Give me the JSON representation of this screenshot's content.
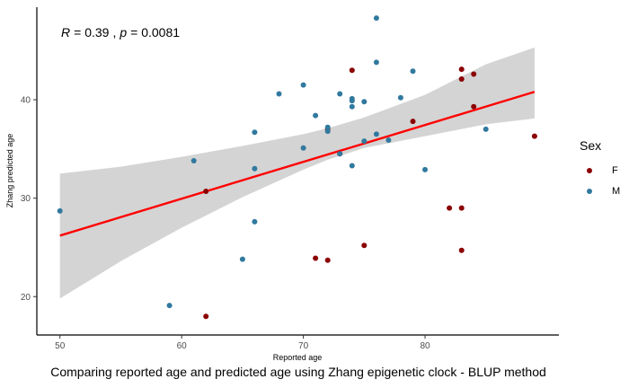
{
  "chart_data": {
    "type": "scatter",
    "title": "",
    "xlabel": "Reported age",
    "ylabel": "Zhang predicted age",
    "caption": "Comparing reported age and predicted age using Zhang epigenetic clock - BLUP method",
    "annotation": {
      "r_label": "R",
      "r_value": "= 0.39",
      "sep": ",",
      "p_label": "p",
      "p_value": "= 0.0081"
    },
    "xlim": [
      48.1,
      91.0
    ],
    "ylim": [
      16.1,
      49.4
    ],
    "x_ticks": [
      50,
      60,
      70,
      80
    ],
    "y_ticks": [
      20,
      30,
      40
    ],
    "legend": {
      "title": "Sex",
      "placement": "right"
    },
    "series": [
      {
        "name": "F",
        "color": "#8b0000",
        "points": [
          [
            62,
            18
          ],
          [
            62,
            30.7
          ],
          [
            71,
            23.9
          ],
          [
            72,
            23.7
          ],
          [
            72,
            37
          ],
          [
            73,
            34.5
          ],
          [
            74,
            43
          ],
          [
            75,
            25.2
          ],
          [
            79,
            37.8
          ],
          [
            82,
            29
          ],
          [
            83,
            29
          ],
          [
            83,
            24.7
          ],
          [
            83,
            43.1
          ],
          [
            83,
            42.1
          ],
          [
            84,
            42.6
          ],
          [
            84,
            39.3
          ],
          [
            89,
            36.3
          ]
        ]
      },
      {
        "name": "M",
        "color": "#31799f",
        "points": [
          [
            50,
            28.7
          ],
          [
            59,
            19.1
          ],
          [
            61,
            33.8
          ],
          [
            65,
            23.8
          ],
          [
            66,
            36.7
          ],
          [
            66,
            33
          ],
          [
            66,
            27.6
          ],
          [
            68,
            40.6
          ],
          [
            70,
            41.5
          ],
          [
            70,
            35.1
          ],
          [
            71,
            38.4
          ],
          [
            72,
            37.2
          ],
          [
            72,
            36.8
          ],
          [
            73,
            40.6
          ],
          [
            73,
            34.5
          ],
          [
            74,
            40.1
          ],
          [
            74,
            39.9
          ],
          [
            74,
            39.3
          ],
          [
            74,
            33.3
          ],
          [
            75,
            39.8
          ],
          [
            75,
            35.8
          ],
          [
            76,
            48.3
          ],
          [
            76,
            43.8
          ],
          [
            76,
            36.5
          ],
          [
            77,
            35.9
          ],
          [
            78,
            40.2
          ],
          [
            79,
            42.9
          ],
          [
            80,
            32.9
          ],
          [
            85,
            37
          ]
        ]
      }
    ],
    "regression": {
      "color": "#ff0000",
      "band_color": "#d4d4d4",
      "x_range": [
        50,
        89
      ],
      "fit": [
        [
          50,
          26.2
        ],
        [
          89,
          40.8
        ]
      ],
      "band": [
        [
          50,
          19.8,
          32.5
        ],
        [
          55,
          23.6,
          33.2
        ],
        [
          60,
          27.0,
          34.2
        ],
        [
          65,
          30.1,
          35.3
        ],
        [
          70,
          32.9,
          36.5
        ],
        [
          72,
          33.9,
          37.1
        ],
        [
          75,
          35.1,
          38.2
        ],
        [
          80,
          36.3,
          40.5
        ],
        [
          85,
          37.5,
          43.6
        ],
        [
          89,
          38.1,
          45.3
        ]
      ]
    }
  }
}
